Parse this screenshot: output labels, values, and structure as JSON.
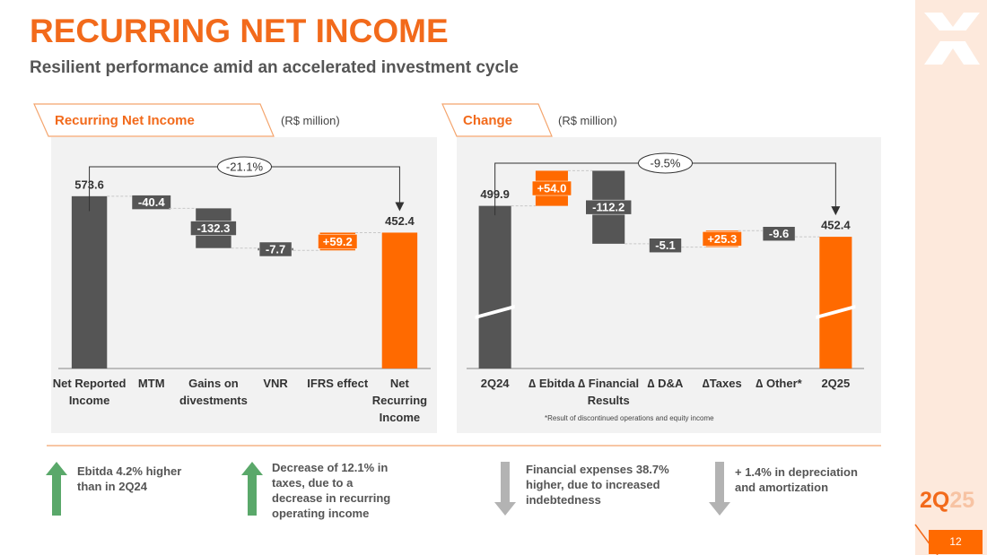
{
  "title": "RECURRING NET INCOME",
  "subtitle": "Resilient performance amid an accelerated investment cycle",
  "chart_data": [
    {
      "type": "waterfall",
      "title": "Recurring Net Income",
      "unit_label": "(R$ million)",
      "categories": [
        "Net Reported Income",
        "MTM",
        "Gains on divestments",
        "VNR",
        "IFRS effect",
        "Net Recurring Income"
      ],
      "values": [
        573.6,
        -40.4,
        -132.3,
        -7.7,
        59.2,
        452.4
      ],
      "value_labels": [
        "573.6",
        "-40.4",
        "-132.3",
        "-7.7",
        "+59.2",
        "452.4"
      ],
      "measure": [
        "absolute",
        "relative",
        "relative",
        "relative",
        "relative",
        "absolute"
      ],
      "colors": [
        "#555555",
        "#555555",
        "#555555",
        "#555555",
        "#ff6a00",
        "#ff6a00"
      ],
      "ylim": [
        0,
        600
      ],
      "axis_break": false,
      "annotation": "-21.1%"
    },
    {
      "type": "waterfall",
      "title": "Change",
      "unit_label": "(R$ million)",
      "categories": [
        "2Q24",
        "∆ Ebitda",
        "∆ Financial Results",
        "∆ D&A",
        "∆Taxes",
        "∆ Other*",
        "2Q25"
      ],
      "values": [
        499.9,
        54.0,
        -112.2,
        -5.1,
        25.3,
        -9.6,
        452.4
      ],
      "value_labels": [
        "499.9",
        "+54.0",
        "-112.2",
        "-5.1",
        "+25.3",
        "-9.6",
        "452.4"
      ],
      "measure": [
        "absolute",
        "relative",
        "relative",
        "relative",
        "relative",
        "relative",
        "absolute"
      ],
      "colors": [
        "#555555",
        "#ff6a00",
        "#555555",
        "#555555",
        "#ff6a00",
        "#555555",
        "#ff6a00"
      ],
      "ylim": [
        250,
        560
      ],
      "axis_break": true,
      "annotation": "-9.5%",
      "note": "*Result of discontinued operations and equity income"
    }
  ],
  "notes": [
    "Ebitda 4.2% higher than in 2Q24",
    "Decrease of 12.1% in taxes, due to a decrease in recurring operating income",
    "Financial expenses 38.7% higher, due to increased indebtedness",
    "+ 1.4% in depreciation and amortization"
  ],
  "badge": {
    "main": "2Q",
    "sub": "25"
  },
  "page_number": "12"
}
